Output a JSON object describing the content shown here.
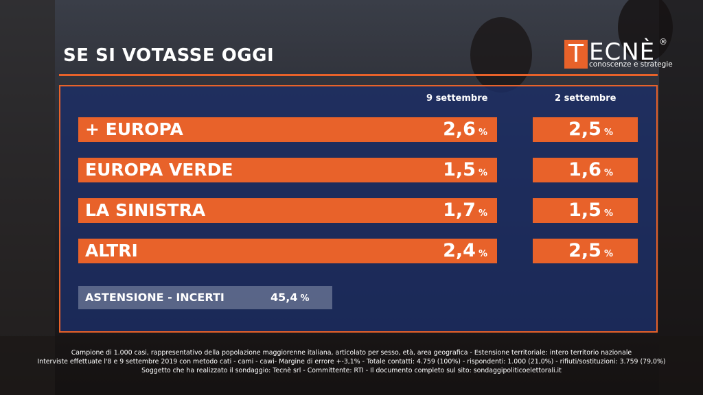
{
  "title": "SE SI VOTASSE OGGI",
  "logo": {
    "tail": "ECNÈ",
    "initial": "T",
    "registered": "®",
    "tagline": "conoscenze e strategie"
  },
  "colors": {
    "accent": "#e8622a",
    "panel": "#1b2e68"
  },
  "chart_data": {
    "type": "table",
    "columns": [
      "9 settembre",
      "2 settembre"
    ],
    "unit": "%",
    "rows": [
      {
        "label": "+ EUROPA",
        "values": [
          "2,6",
          "2,5"
        ]
      },
      {
        "label": "EUROPA VERDE",
        "values": [
          "1,5",
          "1,6"
        ]
      },
      {
        "label": "LA SINISTRA",
        "values": [
          "1,7",
          "1,5"
        ]
      },
      {
        "label": "ALTRI",
        "values": [
          "2,4",
          "2,5"
        ]
      }
    ],
    "abstention": {
      "label": "ASTENSIONE - INCERTI",
      "value": "45,4"
    }
  },
  "footer": [
    "Campione di 1.000 casi, rappresentativo della popolazione maggiorenne italiana, articolato per sesso, età, area geografica - Estensione territoriale: intero territorio nazionale",
    "Interviste effettuate l'8 e 9 settembre 2019 con metodo cati - cami - cawi- Margine di errore +-3,1% - Totale contatti: 4.759 (100%) - rispondenti: 1.000 (21,0%) - rifiuti/sostituzioni: 3.759 (79,0%)",
    "Soggetto che ha realizzato il sondaggio: Tecnè srl - Committente: RTI - Il documento completo sul sito: sondaggipoliticoelettorali.it"
  ]
}
